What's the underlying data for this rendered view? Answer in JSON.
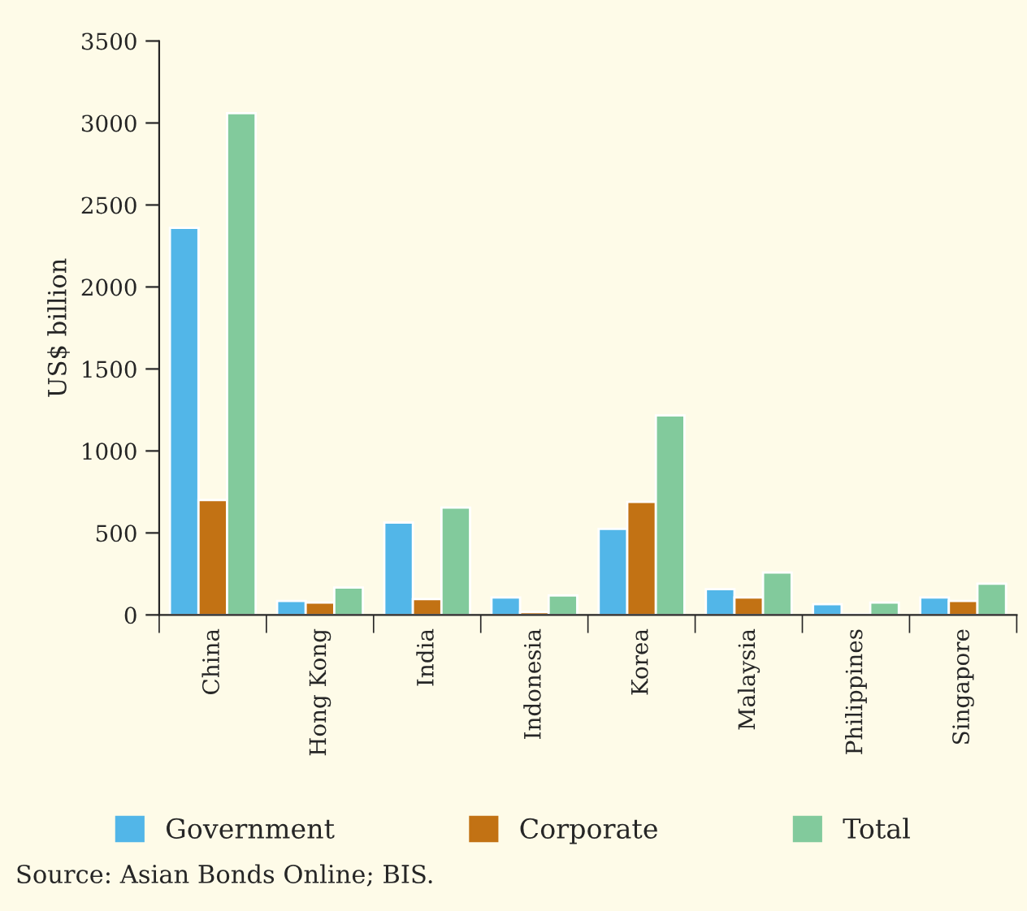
{
  "chart_data": {
    "type": "bar",
    "ylabel": "US$ billion",
    "categories": [
      "China",
      "Hong Kong",
      "India",
      "Indonesia",
      "Korea",
      "Malaysia",
      "Philippines",
      "Singapore"
    ],
    "series": [
      {
        "name": "Government",
        "color": "#52b6e8",
        "values": [
          2360,
          85,
          563,
          106,
          525,
          157,
          65,
          106
        ]
      },
      {
        "name": "Corporate",
        "color": "#c27214",
        "values": [
          700,
          75,
          96,
          17,
          689,
          106,
          3,
          85
        ]
      },
      {
        "name": "Total",
        "color": "#82ca9c",
        "values": [
          3060,
          167,
          655,
          119,
          1217,
          259,
          75,
          191
        ]
      }
    ],
    "ylim": [
      0,
      3500
    ],
    "yticks": [
      0,
      500,
      1000,
      1500,
      2000,
      2500,
      3000,
      3500
    ],
    "grid": false,
    "legend": "bottom",
    "annotations": [
      "Source: Asian Bonds Online; BIS."
    ]
  }
}
